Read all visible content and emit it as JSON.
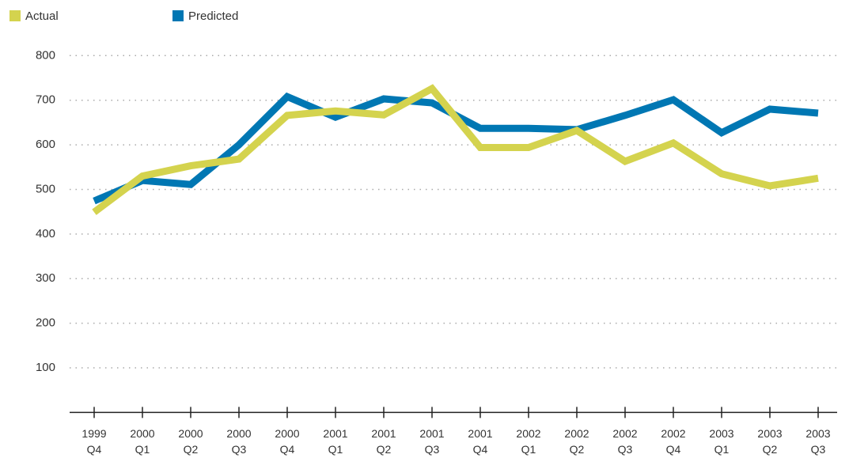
{
  "chart_data": {
    "type": "line",
    "categories": [
      "1999 Q4",
      "2000 Q1",
      "2000 Q2",
      "2000 Q3",
      "2000 Q4",
      "2001 Q1",
      "2001 Q2",
      "2001 Q3",
      "2001 Q4",
      "2002 Q1",
      "2002 Q2",
      "2002 Q3",
      "2002 Q4",
      "2003 Q1",
      "2003 Q2",
      "2003 Q3"
    ],
    "series": [
      {
        "name": "Actual",
        "color": "#d4d34e",
        "values": [
          449,
          530,
          553,
          568,
          666,
          676,
          667,
          726,
          594,
          594,
          632,
          563,
          604,
          535,
          508,
          525
        ]
      },
      {
        "name": "Predicted",
        "color": "#0077b3",
        "values": [
          474,
          520,
          511,
          600,
          708,
          662,
          703,
          694,
          637,
          637,
          634,
          666,
          701,
          627,
          680,
          671
        ]
      }
    ],
    "ylim": [
      0,
      800
    ],
    "yticks": [
      100,
      200,
      300,
      400,
      500,
      600,
      700,
      800
    ],
    "grid": true
  }
}
